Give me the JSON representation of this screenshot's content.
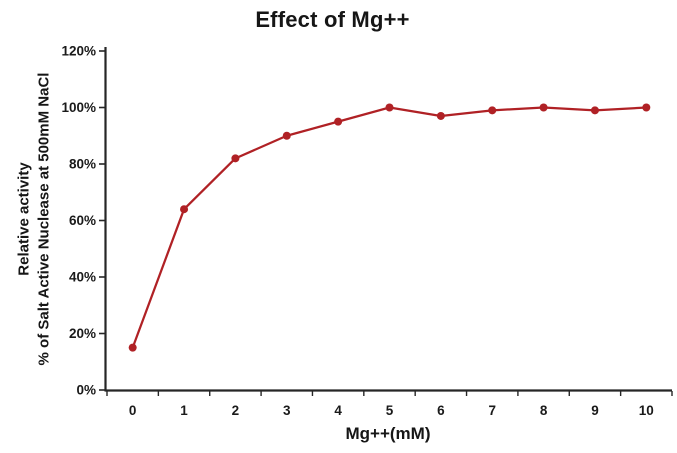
{
  "chart_data": {
    "type": "line",
    "title": "Effect of Mg++",
    "xlabel": "Mg++(mM)",
    "ylabel_line1": "Relative activity",
    "ylabel_line2": "% of Salt Active Nuclease at 500mM NaCl",
    "categories": [
      "0",
      "1",
      "2",
      "3",
      "4",
      "5",
      "6",
      "7",
      "8",
      "9",
      "10"
    ],
    "series": [
      {
        "name": "Relative activity (% of Salt Active Nuclease at 500mM NaCl)",
        "values": [
          15,
          64,
          82,
          90,
          95,
          100,
          97,
          99,
          100,
          99,
          100
        ]
      }
    ],
    "y_ticks": [
      0,
      20,
      40,
      60,
      80,
      100,
      120
    ],
    "y_tick_suffix": "%",
    "ylim": [
      0,
      120
    ],
    "grid": false,
    "legend": false,
    "line_color": "#b02125",
    "marker_color": "#b02125",
    "axis_color": "#262626",
    "text_color": "#1a1a1a"
  }
}
